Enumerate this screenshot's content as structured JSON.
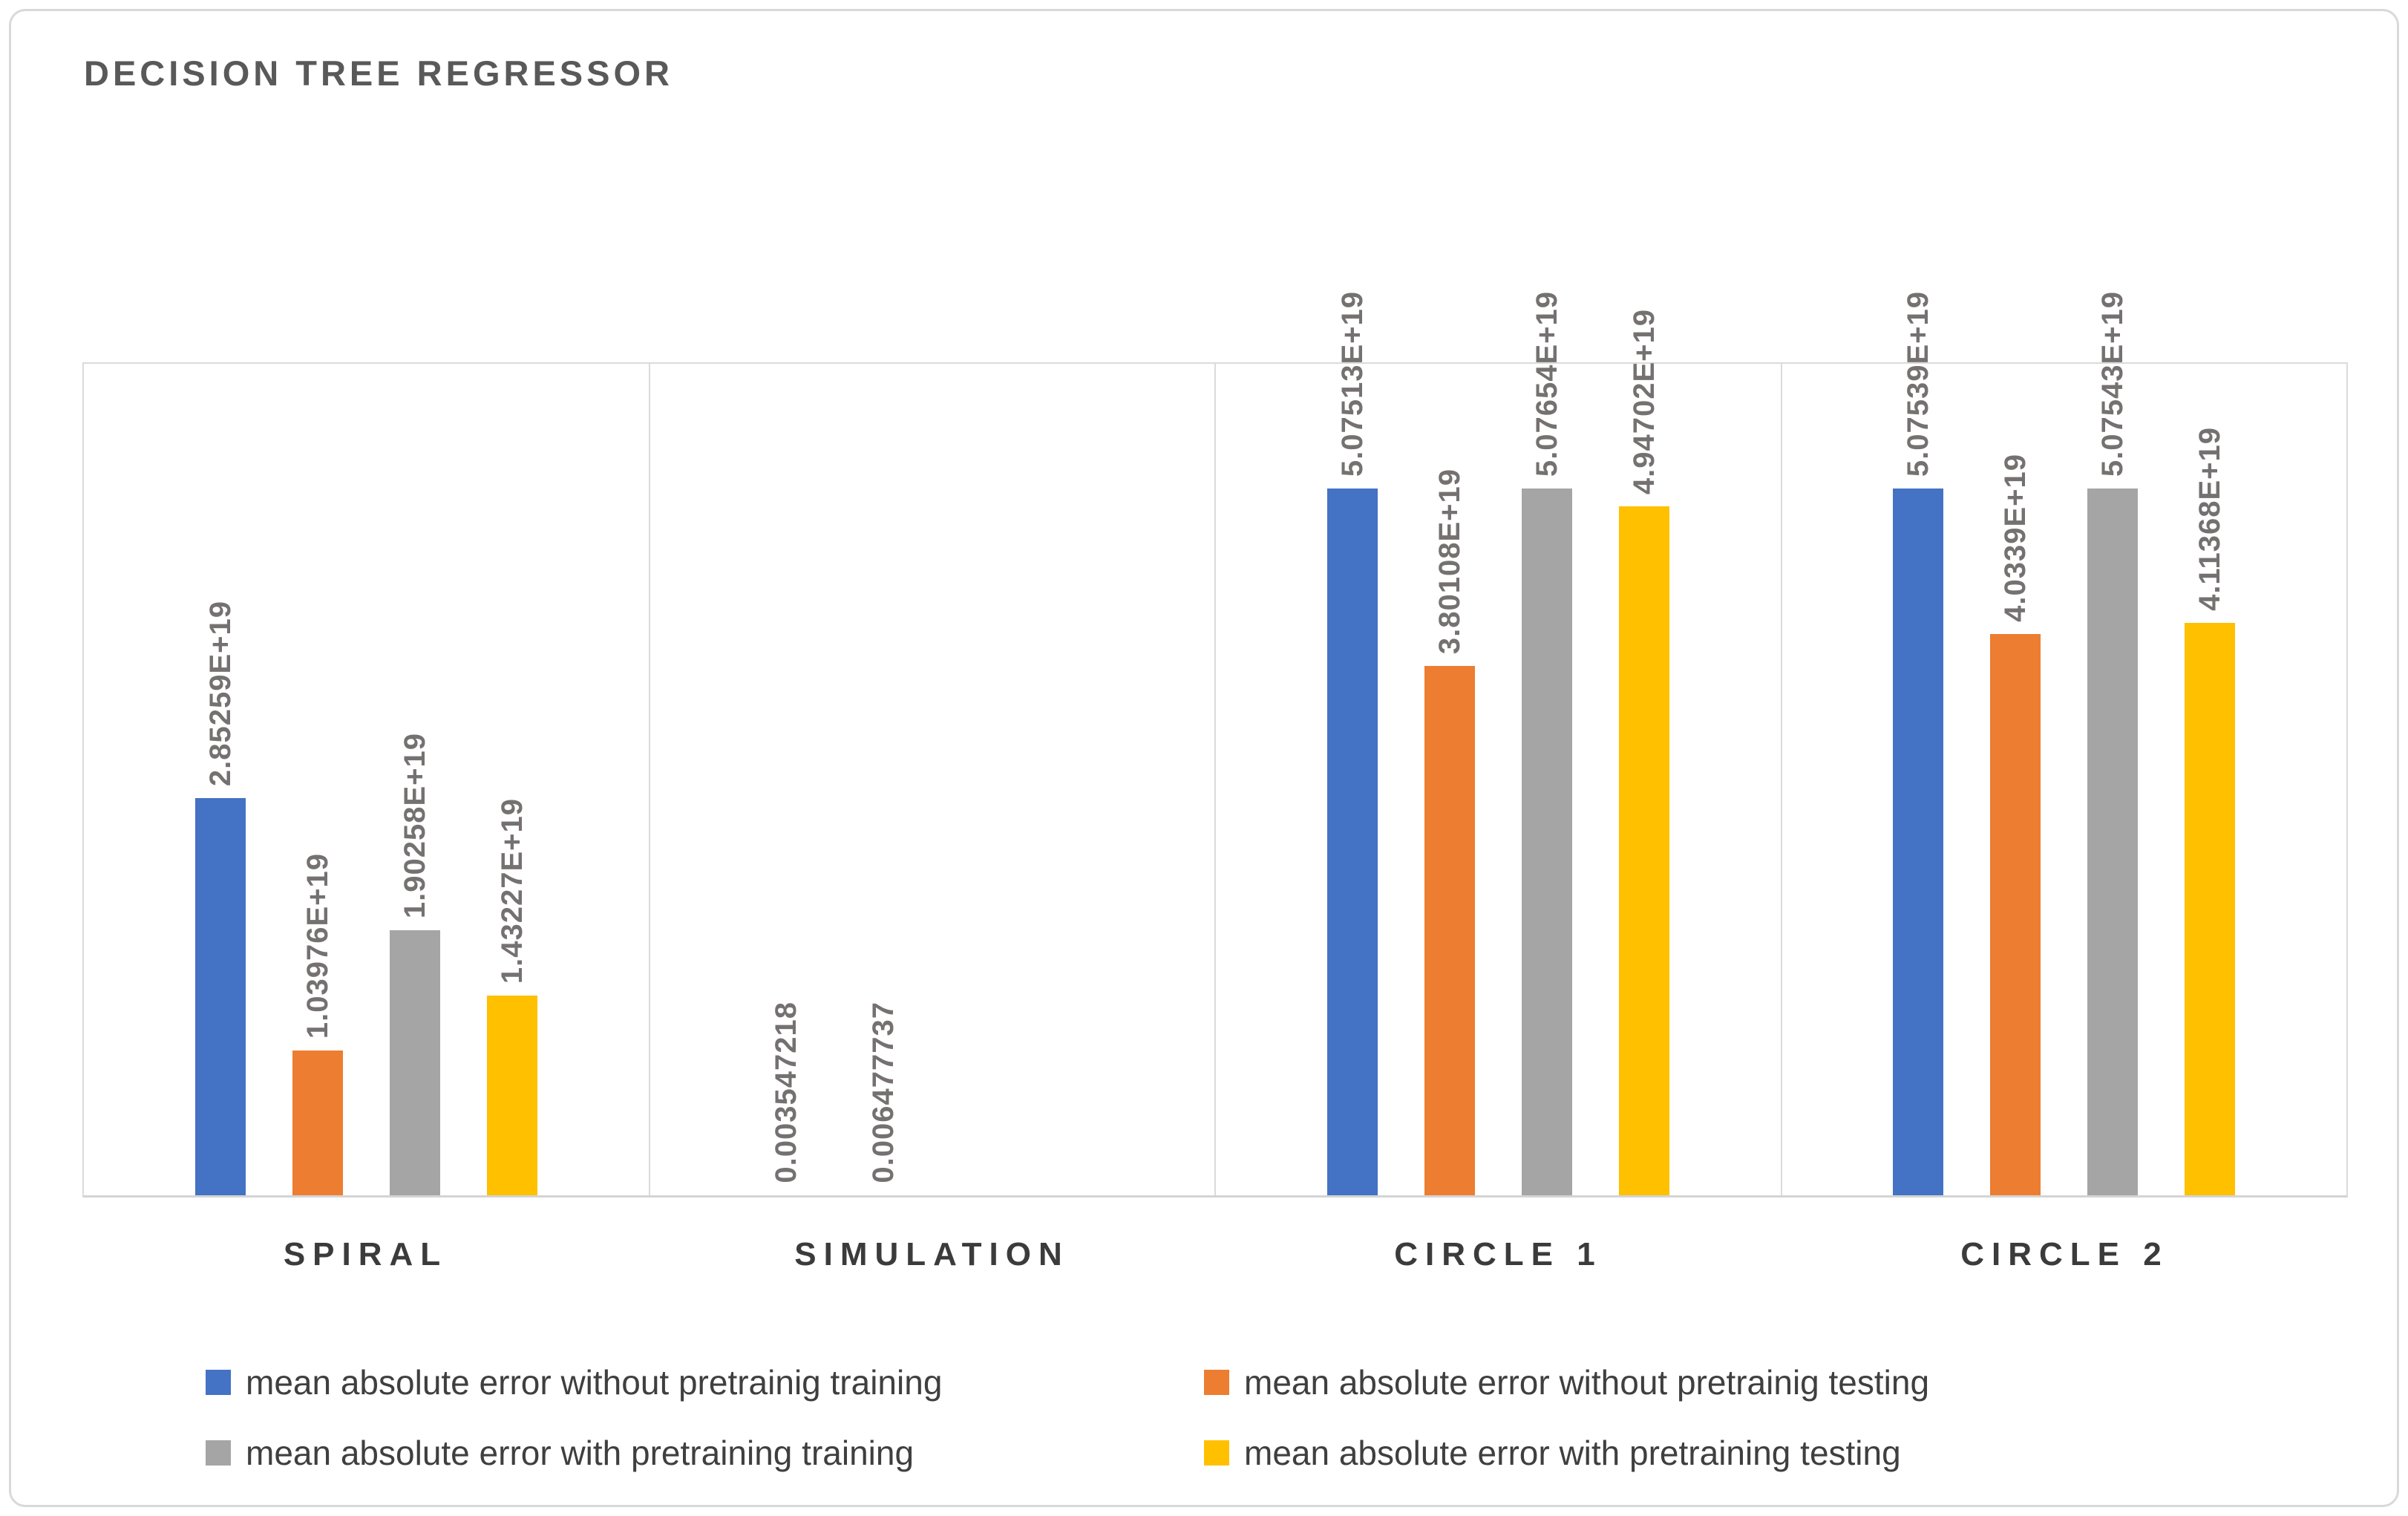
{
  "chart_data": {
    "type": "bar",
    "title": "DECISION TREE REGRESSOR",
    "categories": [
      "SPIRAL",
      "SIMULATION",
      "CIRCLE 1",
      "CIRCLE 2"
    ],
    "axis": {
      "min": 0,
      "max": 6e+19,
      "gridlines_visible": false
    },
    "legend_position": "bottom",
    "series": [
      {
        "name": "mean absolute error without pretrainig training",
        "color": "#4472C4",
        "values": [
          2.85259e+19,
          0.003547218,
          5.07513e+19,
          5.07539e+19
        ],
        "labels": [
          "2.85259E+19",
          "0.003547218",
          "5.07513E+19",
          "5.07539E+19"
        ]
      },
      {
        "name": "mean absolute error without pretrainig testing",
        "color": "#ED7D31",
        "values": [
          1.03976e+19,
          0.006477737,
          3.80108e+19,
          4.0339e+19
        ],
        "labels": [
          "1.03976E+19",
          "0.006477737",
          "3.80108E+19",
          "4.0339E+19"
        ]
      },
      {
        "name": "mean absolute error with pretraining training",
        "color": "#A5A5A5",
        "values": [
          1.90258e+19,
          null,
          5.07654e+19,
          5.07543e+19
        ],
        "labels": [
          "1.90258E+19",
          null,
          "5.07654E+19",
          "5.07543E+19"
        ]
      },
      {
        "name": "mean absolute error with pretraining testing",
        "color": "#FFC000",
        "values": [
          1.43227e+19,
          null,
          4.94702e+19,
          4.11368e+19
        ],
        "labels": [
          "1.43227E+19",
          null,
          "4.94702E+19",
          "4.11368E+19"
        ]
      }
    ],
    "legend_rows": [
      [
        0,
        1
      ],
      [
        2,
        3
      ]
    ],
    "colors": {
      "border": "#D9D9D9",
      "title_text": "#595959",
      "data_label_text": "#767171",
      "category_text": "#3B3B3B",
      "legend_text": "#3F3F3F"
    }
  }
}
